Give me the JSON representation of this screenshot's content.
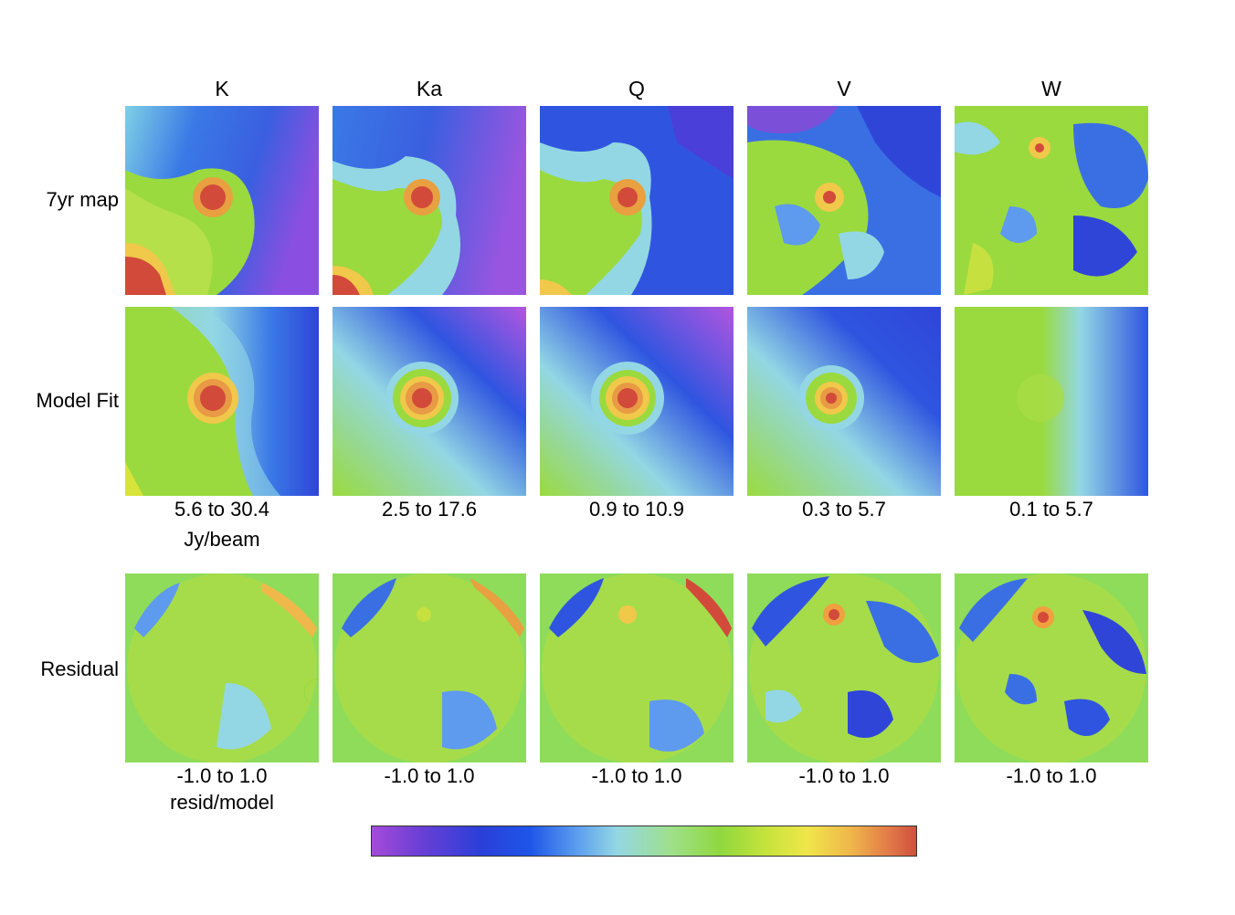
{
  "columns": [
    "K",
    "Ka",
    "Q",
    "V",
    "W"
  ],
  "rows": [
    "7yr map",
    "Model Fit",
    "Residual"
  ],
  "model_ranges": [
    "5.6 to 30.4",
    "2.5 to 17.6",
    "0.9 to 10.9",
    "0.3 to 5.7",
    "0.1 to 5.7"
  ],
  "model_unit": "Jy/beam",
  "residual_ranges": [
    "-1.0 to 1.0",
    "-1.0 to 1.0",
    "-1.0 to 1.0",
    "-1.0 to 1.0",
    "-1.0 to 1.0"
  ],
  "residual_unit": "resid/model",
  "colorbar": {
    "stops": [
      "#a54ad8",
      "#2a3fd8",
      "#93d7e4",
      "#8fd83e",
      "#f0e64a",
      "#d0503e"
    ]
  }
}
